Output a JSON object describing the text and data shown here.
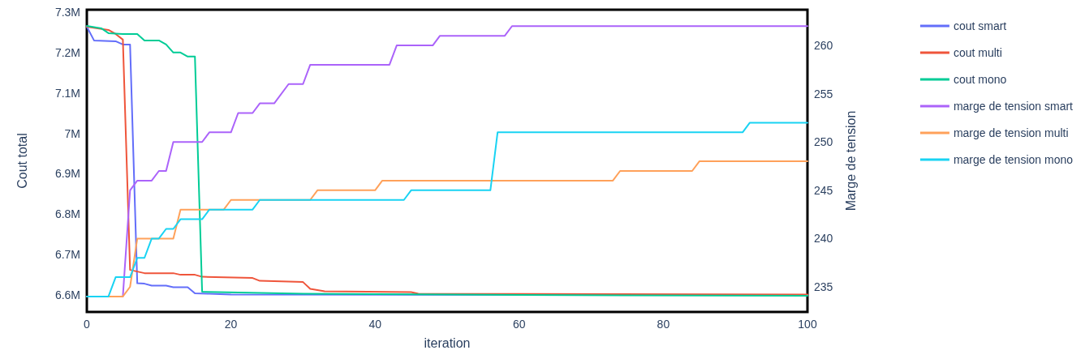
{
  "chart_data": {
    "type": "line",
    "xlabel": "iteration",
    "ylabel": "Cout total",
    "y2label": "Marge de tension",
    "xlim": [
      0,
      100
    ],
    "xticks": [
      0,
      20,
      40,
      60,
      80,
      100
    ],
    "ylim": [
      6558000,
      7306000
    ],
    "yticks": [
      {
        "value": 6600000,
        "label": "6.6M"
      },
      {
        "value": 6700000,
        "label": "6.7M"
      },
      {
        "value": 6800000,
        "label": "6.8M"
      },
      {
        "value": 6900000,
        "label": "6.9M"
      },
      {
        "value": 7000000,
        "label": "7M"
      },
      {
        "value": 7100000,
        "label": "7.1M"
      },
      {
        "value": 7200000,
        "label": "7.2M"
      },
      {
        "value": 7300000,
        "label": "7.3M"
      }
    ],
    "y2lim": [
      232.4,
      263.7
    ],
    "y2ticks": [
      235,
      240,
      245,
      250,
      255,
      260
    ],
    "grid": false,
    "legend": "top right",
    "marker": "none",
    "line_style": "solid",
    "series": [
      {
        "name": "cout smart",
        "color": "#636efa",
        "x": [
          0,
          1,
          4,
          5,
          6,
          7,
          8,
          9,
          11,
          12,
          14,
          15,
          17,
          20,
          100
        ],
        "values": [
          7264000,
          7230000,
          7228000,
          7220000,
          7220000,
          6629000,
          6628000,
          6623000,
          6623000,
          6619000,
          6619000,
          6604000,
          6603000,
          6601000,
          6600000
        ]
      },
      {
        "name": "cout multi",
        "color": "#ef553b",
        "x": [
          0,
          3,
          4,
          5,
          6,
          8,
          12,
          13,
          15,
          16,
          23,
          24,
          30,
          31,
          33,
          45,
          46,
          100
        ],
        "values": [
          7264000,
          7256000,
          7246000,
          7232000,
          6662000,
          6654000,
          6654000,
          6650000,
          6650000,
          6645000,
          6642000,
          6635000,
          6632000,
          6615000,
          6609000,
          6607000,
          6603000,
          6601000
        ]
      },
      {
        "name": "cout mono",
        "color": "#00cc96",
        "x": [
          0,
          2,
          3,
          5,
          7,
          8,
          10,
          11,
          12,
          13,
          14,
          15,
          16,
          30,
          60,
          100
        ],
        "values": [
          7266000,
          7260000,
          7248000,
          7246000,
          7246000,
          7230000,
          7230000,
          7220000,
          7200000,
          7200000,
          7190000,
          7190000,
          6608000,
          6603000,
          6600000,
          6598000
        ]
      },
      {
        "name": "marge de tension smart",
        "color": "#ab63fa",
        "axis": "y2",
        "x": [
          0,
          5,
          6,
          7,
          9,
          10,
          11,
          12,
          16,
          17,
          20,
          21,
          23,
          24,
          26,
          28,
          30,
          31,
          42,
          43,
          48,
          49,
          58,
          59,
          100
        ],
        "values": [
          234,
          234,
          245,
          246,
          246,
          247,
          247,
          250,
          250,
          251,
          251,
          253,
          253,
          254,
          254,
          256,
          256,
          258,
          258,
          260,
          260,
          261,
          261,
          262,
          262
        ]
      },
      {
        "name": "marge de tension multi",
        "color": "#ffa15a",
        "axis": "y2",
        "x": [
          0,
          5,
          6,
          7,
          12,
          13,
          19,
          20,
          31,
          32,
          40,
          41,
          73,
          74,
          84,
          85,
          100
        ],
        "values": [
          234,
          234,
          235,
          240,
          240,
          243,
          243,
          244,
          244,
          245,
          245,
          246,
          246,
          247,
          247,
          248,
          248
        ]
      },
      {
        "name": "marge de tension mono",
        "color": "#19d3f3",
        "axis": "y2",
        "x": [
          0,
          3,
          4,
          6,
          7,
          8,
          9,
          10,
          11,
          12,
          13,
          16,
          17,
          23,
          24,
          44,
          45,
          56,
          57,
          91,
          92,
          100
        ],
        "values": [
          234,
          234,
          236,
          236,
          238,
          238,
          240,
          240,
          241,
          241,
          242,
          242,
          243,
          243,
          244,
          244,
          245,
          245,
          251,
          251,
          252,
          252
        ]
      }
    ]
  }
}
